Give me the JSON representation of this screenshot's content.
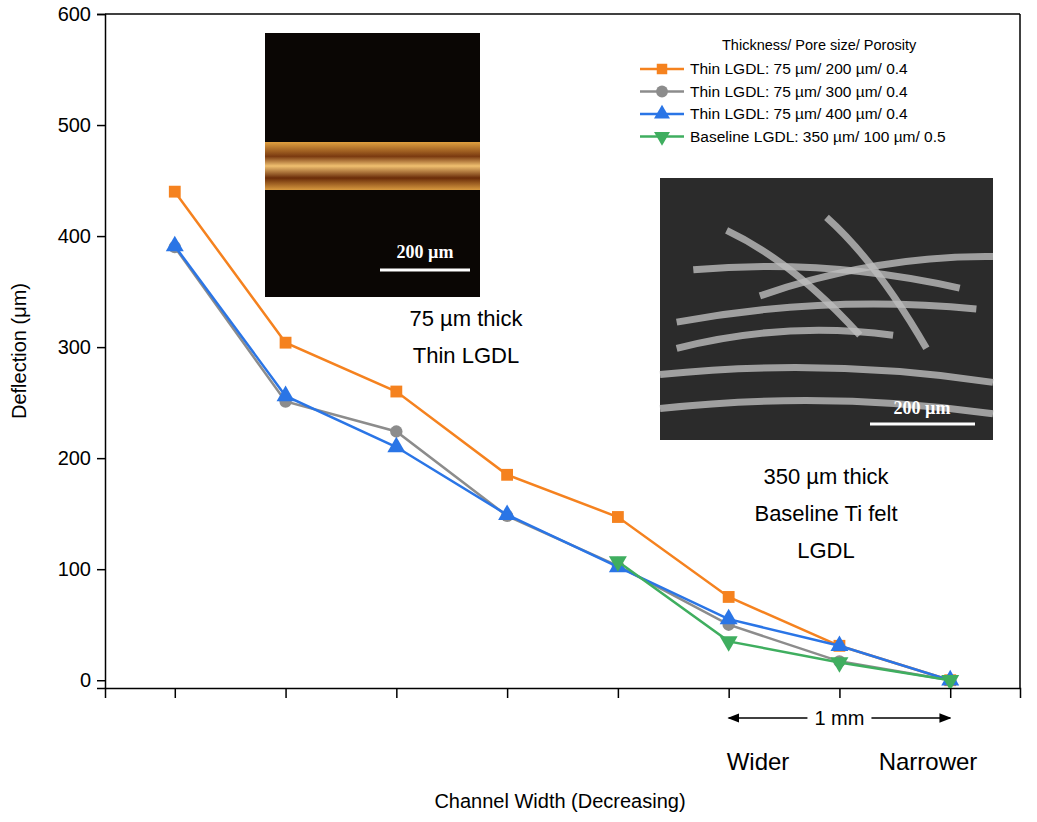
{
  "chart_data": {
    "type": "line",
    "x_label": "Channel Width (Decreasing)",
    "y_label": "Deflection (μm)",
    "categories": [
      null,
      null,
      null,
      null,
      null,
      null,
      null,
      null
    ],
    "ylim": [
      -7,
      600
    ],
    "yticks": [
      0,
      100,
      200,
      300,
      400,
      500,
      600
    ],
    "legend": "upper right",
    "legend_title": "Thickness/ Pore size/ Porosity",
    "series": [
      {
        "name": "Thin LGDL: 75 µm/ 200 µm/ 0.4",
        "color": "#f5821f",
        "marker": "square",
        "values": [
          440,
          304,
          260,
          185,
          147,
          75,
          31,
          0
        ]
      },
      {
        "name": "Thin LGDL: 75 µm/ 300 µm/ 0.4",
        "color": "#8c8c8c",
        "marker": "circle",
        "values": [
          390,
          251,
          224,
          148,
          103,
          50,
          17,
          0
        ]
      },
      {
        "name": "Thin LGDL: 75 µm/ 400 µm/ 0.4",
        "color": "#2a75e6",
        "marker": "triangle-up",
        "values": [
          391,
          256,
          210,
          149,
          102,
          55,
          31,
          0
        ]
      },
      {
        "name": "Baseline LGDL: 350 µm/ 100 µm/ 0.5",
        "color": "#3fae5f",
        "marker": "triangle-down",
        "values": [
          null,
          null,
          null,
          null,
          107,
          35,
          16,
          0
        ]
      }
    ],
    "annotations": [
      {
        "text": [
          "75 µm thick",
          "Thin LGDL"
        ]
      },
      {
        "text": [
          "350 µm thick",
          "Baseline Ti felt",
          "LGDL"
        ]
      },
      {
        "text": "200 µm"
      },
      {
        "text": "200 µm"
      },
      {
        "text": "1 mm"
      },
      {
        "text": "Wider"
      },
      {
        "text": "Narrower"
      }
    ]
  }
}
